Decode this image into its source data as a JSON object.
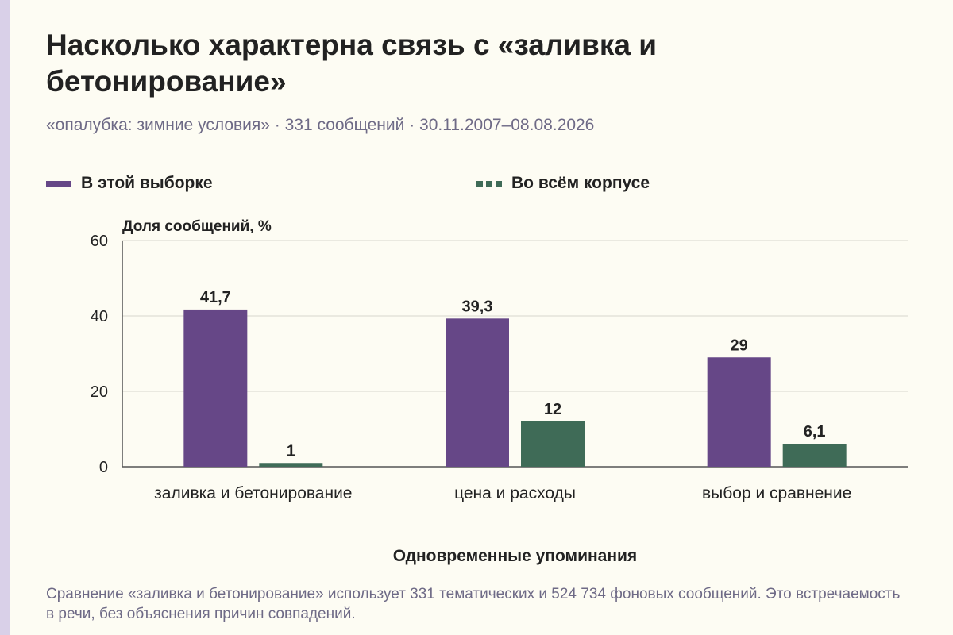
{
  "title": "Насколько характерна связь с «заливка и бетонирование»",
  "subtitle": "«опалубка: зимние условия» · 331 сообщений · 30.11.2007–08.08.2026",
  "footnote": "Сравнение «заливка и бетонирование» использует 331 тематических и 524 734 фоновых сообщений. Это встречаемость в речи, без объяснения причин совпадений.",
  "colors": {
    "sample": "#664787",
    "corpus": "#3f6b57",
    "background": "#fdfcf3"
  },
  "chart_data": {
    "type": "bar",
    "title": "Насколько характерна связь с «заливка и бетонирование»",
    "ylabel": "Доля сообщений, %",
    "xlabel": "Одновременные упоминания",
    "ylim": [
      0,
      60
    ],
    "yticks": [
      "0",
      "20",
      "40",
      "60"
    ],
    "grid": true,
    "legend_position": "top",
    "categories": [
      "заливка и бетонирование",
      "цена и расходы",
      "выбор и сравнение"
    ],
    "series": [
      {
        "name": "В этой выборке",
        "values": [
          41.7,
          39.3,
          29
        ],
        "labels": [
          "41,7",
          "39,3",
          "29"
        ]
      },
      {
        "name": "Во всём корпусе",
        "values": [
          1,
          12,
          6.1
        ],
        "labels": [
          "1",
          "12",
          "6,1"
        ]
      }
    ]
  }
}
